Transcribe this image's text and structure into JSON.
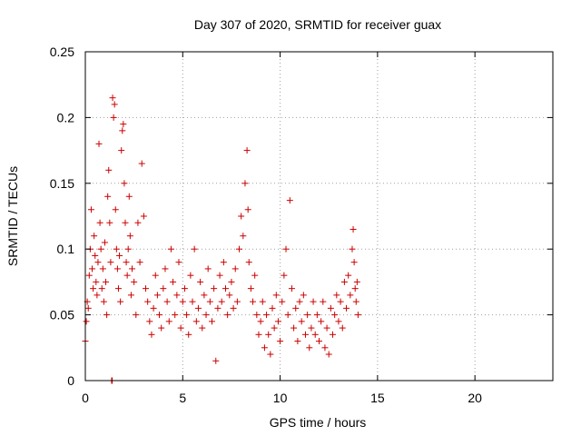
{
  "chart_data": {
    "type": "scatter",
    "title": "Day 307 of 2020, SRMTID for receiver guax",
    "xlabel": "GPS time / hours",
    "ylabel": "SRMTID / TECUs",
    "xlim": [
      0,
      24
    ],
    "ylim": [
      0,
      0.25
    ],
    "xticks": [
      0,
      5,
      10,
      15,
      20
    ],
    "xtick_labels": [
      "0",
      "5",
      "10",
      "15",
      "20"
    ],
    "yticks": [
      0,
      0.05,
      0.1,
      0.15,
      0.2,
      0.25
    ],
    "ytick_labels": [
      "0",
      "0.05",
      "0.1",
      "0.15",
      "0.2",
      "0.25"
    ],
    "grid": true,
    "marker": "plus",
    "marker_color": "#cc0000",
    "series": [
      {
        "name": "SRMTID",
        "points": [
          [
            0.0,
            0.03
          ],
          [
            0.05,
            0.045
          ],
          [
            0.1,
            0.06
          ],
          [
            0.15,
            0.055
          ],
          [
            0.2,
            0.08
          ],
          [
            0.25,
            0.1
          ],
          [
            0.3,
            0.13
          ],
          [
            0.35,
            0.085
          ],
          [
            0.4,
            0.07
          ],
          [
            0.45,
            0.11
          ],
          [
            0.5,
            0.095
          ],
          [
            0.55,
            0.075
          ],
          [
            0.6,
            0.065
          ],
          [
            0.65,
            0.09
          ],
          [
            0.7,
            0.18
          ],
          [
            0.75,
            0.12
          ],
          [
            0.8,
            0.1
          ],
          [
            0.85,
            0.07
          ],
          [
            0.9,
            0.085
          ],
          [
            0.95,
            0.06
          ],
          [
            1.0,
            0.105
          ],
          [
            1.05,
            0.075
          ],
          [
            1.1,
            0.05
          ],
          [
            1.15,
            0.14
          ],
          [
            1.2,
            0.16
          ],
          [
            1.25,
            0.12
          ],
          [
            1.3,
            0.09
          ],
          [
            1.35,
            0.0
          ],
          [
            1.38,
            0.0
          ],
          [
            1.4,
            0.215
          ],
          [
            1.45,
            0.2
          ],
          [
            1.5,
            0.21
          ],
          [
            1.55,
            0.13
          ],
          [
            1.6,
            0.1
          ],
          [
            1.65,
            0.085
          ],
          [
            1.7,
            0.07
          ],
          [
            1.75,
            0.095
          ],
          [
            1.8,
            0.06
          ],
          [
            1.85,
            0.175
          ],
          [
            1.9,
            0.19
          ],
          [
            1.95,
            0.195
          ],
          [
            2.0,
            0.15
          ],
          [
            2.05,
            0.12
          ],
          [
            2.1,
            0.09
          ],
          [
            2.15,
            0.08
          ],
          [
            2.2,
            0.1
          ],
          [
            2.25,
            0.14
          ],
          [
            2.3,
            0.11
          ],
          [
            2.35,
            0.065
          ],
          [
            2.4,
            0.085
          ],
          [
            2.5,
            0.075
          ],
          [
            2.6,
            0.05
          ],
          [
            2.7,
            0.12
          ],
          [
            2.8,
            0.09
          ],
          [
            2.9,
            0.165
          ],
          [
            3.0,
            0.125
          ],
          [
            3.1,
            0.07
          ],
          [
            3.2,
            0.06
          ],
          [
            3.3,
            0.045
          ],
          [
            3.4,
            0.035
          ],
          [
            3.5,
            0.055
          ],
          [
            3.6,
            0.08
          ],
          [
            3.7,
            0.065
          ],
          [
            3.8,
            0.05
          ],
          [
            3.9,
            0.04
          ],
          [
            4.0,
            0.07
          ],
          [
            4.1,
            0.085
          ],
          [
            4.2,
            0.06
          ],
          [
            4.3,
            0.045
          ],
          [
            4.4,
            0.1
          ],
          [
            4.5,
            0.075
          ],
          [
            4.6,
            0.05
          ],
          [
            4.7,
            0.065
          ],
          [
            4.8,
            0.09
          ],
          [
            4.9,
            0.04
          ],
          [
            5.0,
            0.06
          ],
          [
            5.1,
            0.07
          ],
          [
            5.2,
            0.05
          ],
          [
            5.3,
            0.035
          ],
          [
            5.4,
            0.08
          ],
          [
            5.5,
            0.06
          ],
          [
            5.6,
            0.1
          ],
          [
            5.7,
            0.045
          ],
          [
            5.8,
            0.055
          ],
          [
            5.9,
            0.075
          ],
          [
            6.0,
            0.04
          ],
          [
            6.1,
            0.065
          ],
          [
            6.2,
            0.05
          ],
          [
            6.3,
            0.085
          ],
          [
            6.4,
            0.06
          ],
          [
            6.5,
            0.045
          ],
          [
            6.6,
            0.07
          ],
          [
            6.7,
            0.015
          ],
          [
            6.8,
            0.055
          ],
          [
            6.9,
            0.08
          ],
          [
            7.0,
            0.06
          ],
          [
            7.1,
            0.09
          ],
          [
            7.2,
            0.07
          ],
          [
            7.3,
            0.05
          ],
          [
            7.4,
            0.065
          ],
          [
            7.5,
            0.075
          ],
          [
            7.6,
            0.055
          ],
          [
            7.7,
            0.085
          ],
          [
            7.8,
            0.06
          ],
          [
            7.9,
            0.1
          ],
          [
            8.0,
            0.125
          ],
          [
            8.1,
            0.11
          ],
          [
            8.2,
            0.15
          ],
          [
            8.3,
            0.175
          ],
          [
            8.35,
            0.13
          ],
          [
            8.4,
            0.09
          ],
          [
            8.5,
            0.07
          ],
          [
            8.6,
            0.06
          ],
          [
            8.7,
            0.08
          ],
          [
            8.8,
            0.05
          ],
          [
            8.9,
            0.035
          ],
          [
            9.0,
            0.045
          ],
          [
            9.1,
            0.06
          ],
          [
            9.2,
            0.025
          ],
          [
            9.3,
            0.05
          ],
          [
            9.4,
            0.035
          ],
          [
            9.5,
            0.02
          ],
          [
            9.6,
            0.055
          ],
          [
            9.7,
            0.04
          ],
          [
            9.8,
            0.065
          ],
          [
            9.9,
            0.045
          ],
          [
            10.0,
            0.03
          ],
          [
            10.1,
            0.06
          ],
          [
            10.2,
            0.08
          ],
          [
            10.3,
            0.1
          ],
          [
            10.4,
            0.05
          ],
          [
            10.5,
            0.137
          ],
          [
            10.6,
            0.07
          ],
          [
            10.7,
            0.04
          ],
          [
            10.8,
            0.055
          ],
          [
            10.9,
            0.03
          ],
          [
            11.0,
            0.06
          ],
          [
            11.1,
            0.045
          ],
          [
            11.2,
            0.065
          ],
          [
            11.3,
            0.035
          ],
          [
            11.4,
            0.05
          ],
          [
            11.5,
            0.025
          ],
          [
            11.6,
            0.04
          ],
          [
            11.7,
            0.06
          ],
          [
            11.8,
            0.035
          ],
          [
            11.9,
            0.05
          ],
          [
            12.0,
            0.03
          ],
          [
            12.1,
            0.045
          ],
          [
            12.2,
            0.06
          ],
          [
            12.3,
            0.025
          ],
          [
            12.4,
            0.04
          ],
          [
            12.5,
            0.02
          ],
          [
            12.6,
            0.055
          ],
          [
            12.7,
            0.035
          ],
          [
            12.8,
            0.05
          ],
          [
            12.9,
            0.065
          ],
          [
            13.0,
            0.045
          ],
          [
            13.1,
            0.06
          ],
          [
            13.2,
            0.04
          ],
          [
            13.3,
            0.075
          ],
          [
            13.4,
            0.055
          ],
          [
            13.5,
            0.08
          ],
          [
            13.6,
            0.065
          ],
          [
            13.7,
            0.1
          ],
          [
            13.75,
            0.115
          ],
          [
            13.8,
            0.09
          ],
          [
            13.85,
            0.07
          ],
          [
            13.9,
            0.06
          ],
          [
            13.95,
            0.075
          ],
          [
            14.0,
            0.05
          ]
        ]
      }
    ]
  }
}
